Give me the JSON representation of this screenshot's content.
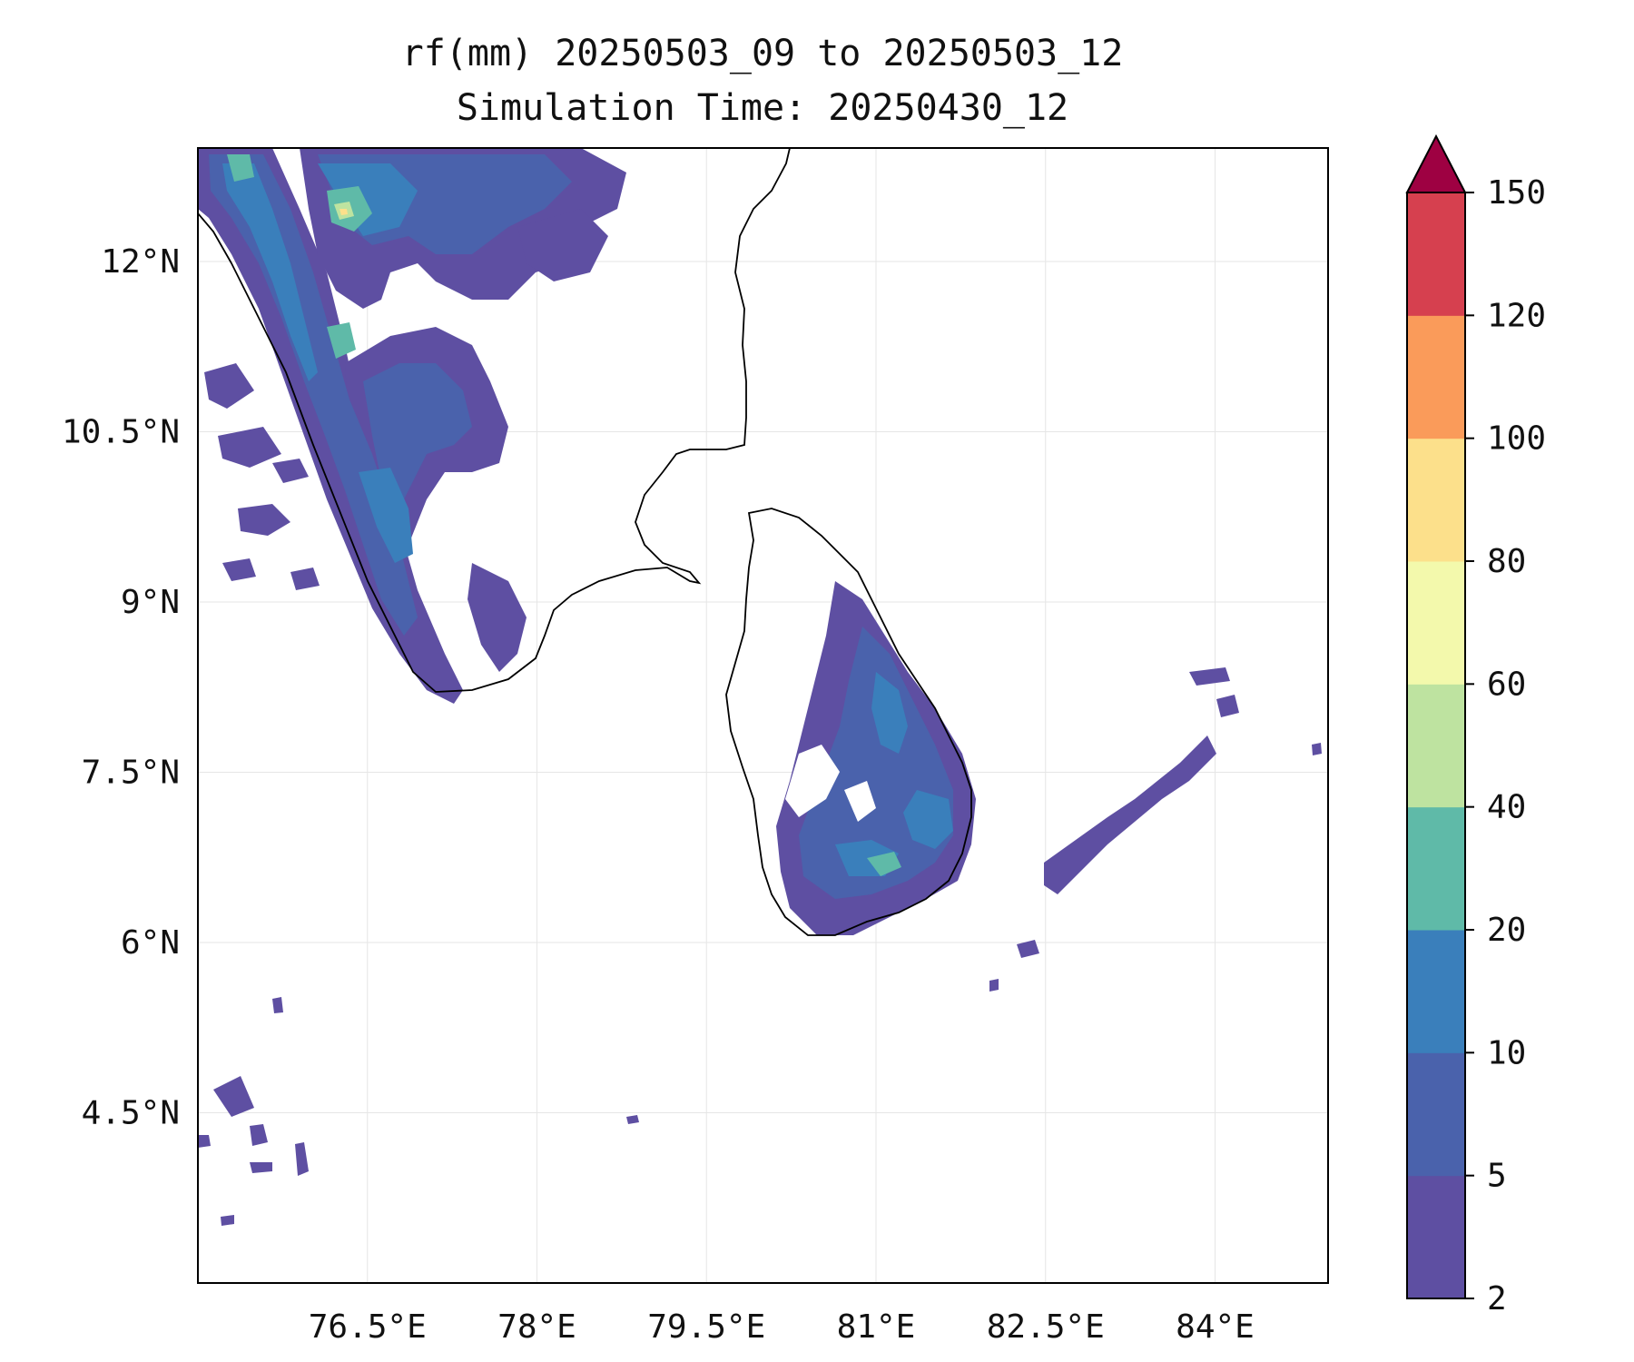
{
  "title": {
    "line1": "rf(mm) 20250503_09 to 20250503_12",
    "line2": "Simulation Time: 20250430_12"
  },
  "map": {
    "region": "Southern India and Sri Lanka",
    "lon_range": [
      75.0,
      85.0
    ],
    "lat_range": [
      3.0,
      13.0
    ],
    "gridlines": true,
    "x_ticks": [
      {
        "value": 76.5,
        "label": "76.5°E"
      },
      {
        "value": 78.0,
        "label": "78°E"
      },
      {
        "value": 79.5,
        "label": "79.5°E"
      },
      {
        "value": 81.0,
        "label": "81°E"
      },
      {
        "value": 82.5,
        "label": "82.5°E"
      },
      {
        "value": 84.0,
        "label": "84°E"
      }
    ],
    "y_ticks": [
      {
        "value": 12.0,
        "label": "12°N"
      },
      {
        "value": 10.5,
        "label": "10.5°N"
      },
      {
        "value": 9.0,
        "label": "9°N"
      },
      {
        "value": 7.5,
        "label": "7.5°N"
      },
      {
        "value": 6.0,
        "label": "6°N"
      },
      {
        "value": 4.5,
        "label": "4.5°N"
      }
    ]
  },
  "colorbar": {
    "extend": "max",
    "extend_color": "#9e0142",
    "levels": [
      {
        "from": 2,
        "to": 5,
        "color": "#5e4fa2"
      },
      {
        "from": 5,
        "to": 10,
        "color": "#4a62ac"
      },
      {
        "from": 10,
        "to": 20,
        "color": "#3a7fbb"
      },
      {
        "from": 20,
        "to": 40,
        "color": "#5fbaa8"
      },
      {
        "from": 40,
        "to": 60,
        "color": "#bee3a0"
      },
      {
        "from": 60,
        "to": 80,
        "color": "#f3f9ac"
      },
      {
        "from": 80,
        "to": 100,
        "color": "#fce08b"
      },
      {
        "from": 100,
        "to": 120,
        "color": "#fa9b5a"
      },
      {
        "from": 120,
        "to": 150,
        "color": "#d6404f"
      }
    ],
    "tick_labels": [
      "2",
      "5",
      "10",
      "20",
      "40",
      "60",
      "80",
      "100",
      "120",
      "150"
    ]
  }
}
